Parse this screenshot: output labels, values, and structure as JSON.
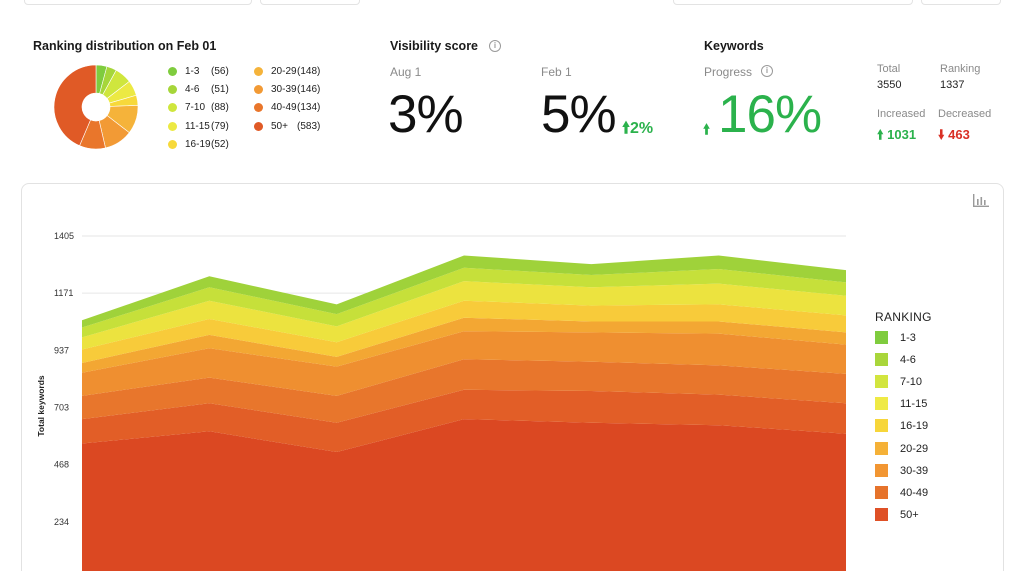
{
  "ranking_distribution": {
    "title": "Ranking distribution on Feb 01",
    "items": [
      {
        "label": "1-3",
        "count": "(56)",
        "color": "#7fcc3e"
      },
      {
        "label": "4-6",
        "count": "(51)",
        "color": "#a6d63a"
      },
      {
        "label": "7-10",
        "count": "(88)",
        "color": "#cfe63d"
      },
      {
        "label": "11-15",
        "count": "(79)",
        "color": "#ece943"
      },
      {
        "label": "16-19",
        "count": "(52)",
        "color": "#f7d93a"
      },
      {
        "label": "20-29",
        "count": "(148)",
        "color": "#f5b33a"
      },
      {
        "label": "30-39",
        "count": "(146)",
        "color": "#f29a35"
      },
      {
        "label": "40-49",
        "count": "(134)",
        "color": "#e9762b"
      },
      {
        "label": "50+",
        "count": "(583)",
        "color": "#e05a26"
      }
    ],
    "values": [
      56,
      51,
      88,
      79,
      52,
      148,
      146,
      134,
      583
    ]
  },
  "visibility": {
    "title": "Visibility score",
    "info_icon": "info-icon",
    "aug_label": "Aug 1",
    "aug_value": "3%",
    "feb_label": "Feb 1",
    "feb_value": "5%",
    "delta": "2%"
  },
  "keywords": {
    "title": "Keywords",
    "progress_label": "Progress",
    "progress_value": "16%",
    "total_label": "Total",
    "total_value": "3550",
    "ranking_label": "Ranking",
    "ranking_value": "1337",
    "increased_label": "Increased",
    "increased_value": "1031",
    "decreased_label": "Decreased",
    "decreased_value": "463"
  },
  "chart_data": {
    "type": "area",
    "title": "",
    "ylabel": "Total keywords",
    "xlabel": "",
    "y_ticks": [
      "234",
      "468",
      "703",
      "937",
      "1171",
      "1405"
    ],
    "ylim": [
      0,
      1405
    ],
    "legend_title": "RANKING",
    "legend_position": "right",
    "grid": true,
    "x_count": 7,
    "series": [
      {
        "name": "50+",
        "color": "#db4822",
        "values": [
          555,
          605,
          520,
          655,
          640,
          630,
          595
        ]
      },
      {
        "name": "40-49",
        "color": "#e25e27",
        "values": [
          100,
          115,
          120,
          120,
          130,
          125,
          125
        ]
      },
      {
        "name": "30-39",
        "color": "#e8762c",
        "values": [
          95,
          105,
          110,
          125,
          120,
          120,
          120
        ]
      },
      {
        "name": "20-29",
        "color": "#ef8f30",
        "values": [
          95,
          120,
          120,
          115,
          120,
          130,
          120
        ]
      },
      {
        "name": "16-19",
        "color": "#f3a733",
        "values": [
          40,
          55,
          40,
          55,
          45,
          50,
          50
        ]
      },
      {
        "name": "11-15",
        "color": "#f8cb3a",
        "values": [
          55,
          65,
          60,
          70,
          65,
          70,
          70
        ]
      },
      {
        "name": "7-10",
        "color": "#ece33f",
        "values": [
          50,
          75,
          65,
          80,
          75,
          85,
          80
        ]
      },
      {
        "name": "4-6",
        "color": "#c6e03a",
        "values": [
          40,
          55,
          50,
          55,
          50,
          60,
          55
        ]
      },
      {
        "name": "1-3",
        "color": "#9fd23a",
        "values": [
          30,
          45,
          40,
          50,
          45,
          55,
          50
        ]
      }
    ]
  },
  "ranking_legend": [
    {
      "label": "1-3",
      "color": "#7fcc3e"
    },
    {
      "label": "4-6",
      "color": "#a9d63b"
    },
    {
      "label": "7-10",
      "color": "#d2e53e"
    },
    {
      "label": "11-15",
      "color": "#efea45"
    },
    {
      "label": "16-19",
      "color": "#f7d63a"
    },
    {
      "label": "20-29",
      "color": "#f5b137"
    },
    {
      "label": "30-39",
      "color": "#f29632"
    },
    {
      "label": "40-49",
      "color": "#e6732b"
    },
    {
      "label": "50+",
      "color": "#df5026"
    }
  ],
  "icons": {
    "up_arrow": "arrow-up-icon",
    "down_arrow": "arrow-down-icon",
    "chart_menu": "chart-menu-icon"
  }
}
